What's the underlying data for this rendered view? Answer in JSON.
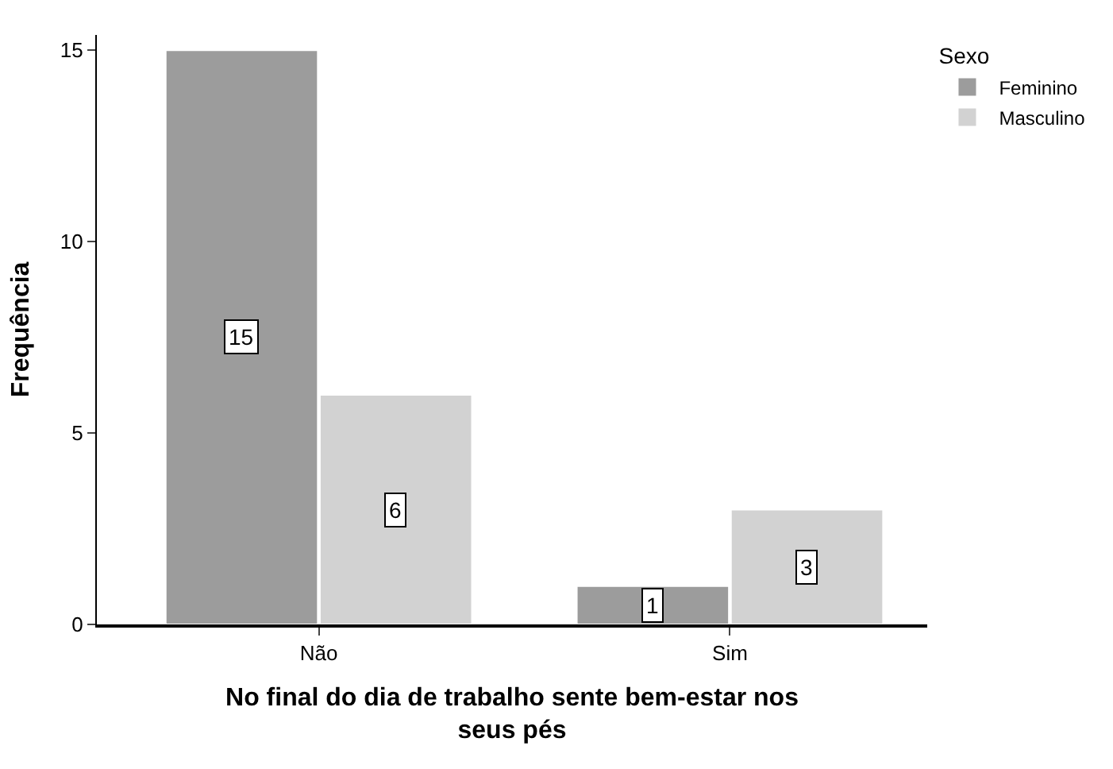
{
  "chart_data": {
    "type": "bar",
    "categories": [
      "Não",
      "Sim"
    ],
    "series": [
      {
        "name": "Feminino",
        "color": "#9c9c9c",
        "values": [
          15,
          1
        ]
      },
      {
        "name": "Masculino",
        "color": "#d2d2d2",
        "values": [
          6,
          3
        ]
      }
    ],
    "xlabel": "No final do dia de trabalho sente bem-estar nos seus pés",
    "ylabel": "Frequência",
    "legend_title": "Sexo",
    "legend": "top right",
    "ylim": [
      0,
      15.4
    ],
    "yticks": [
      0,
      5,
      10,
      15
    ],
    "data_labels": true
  }
}
